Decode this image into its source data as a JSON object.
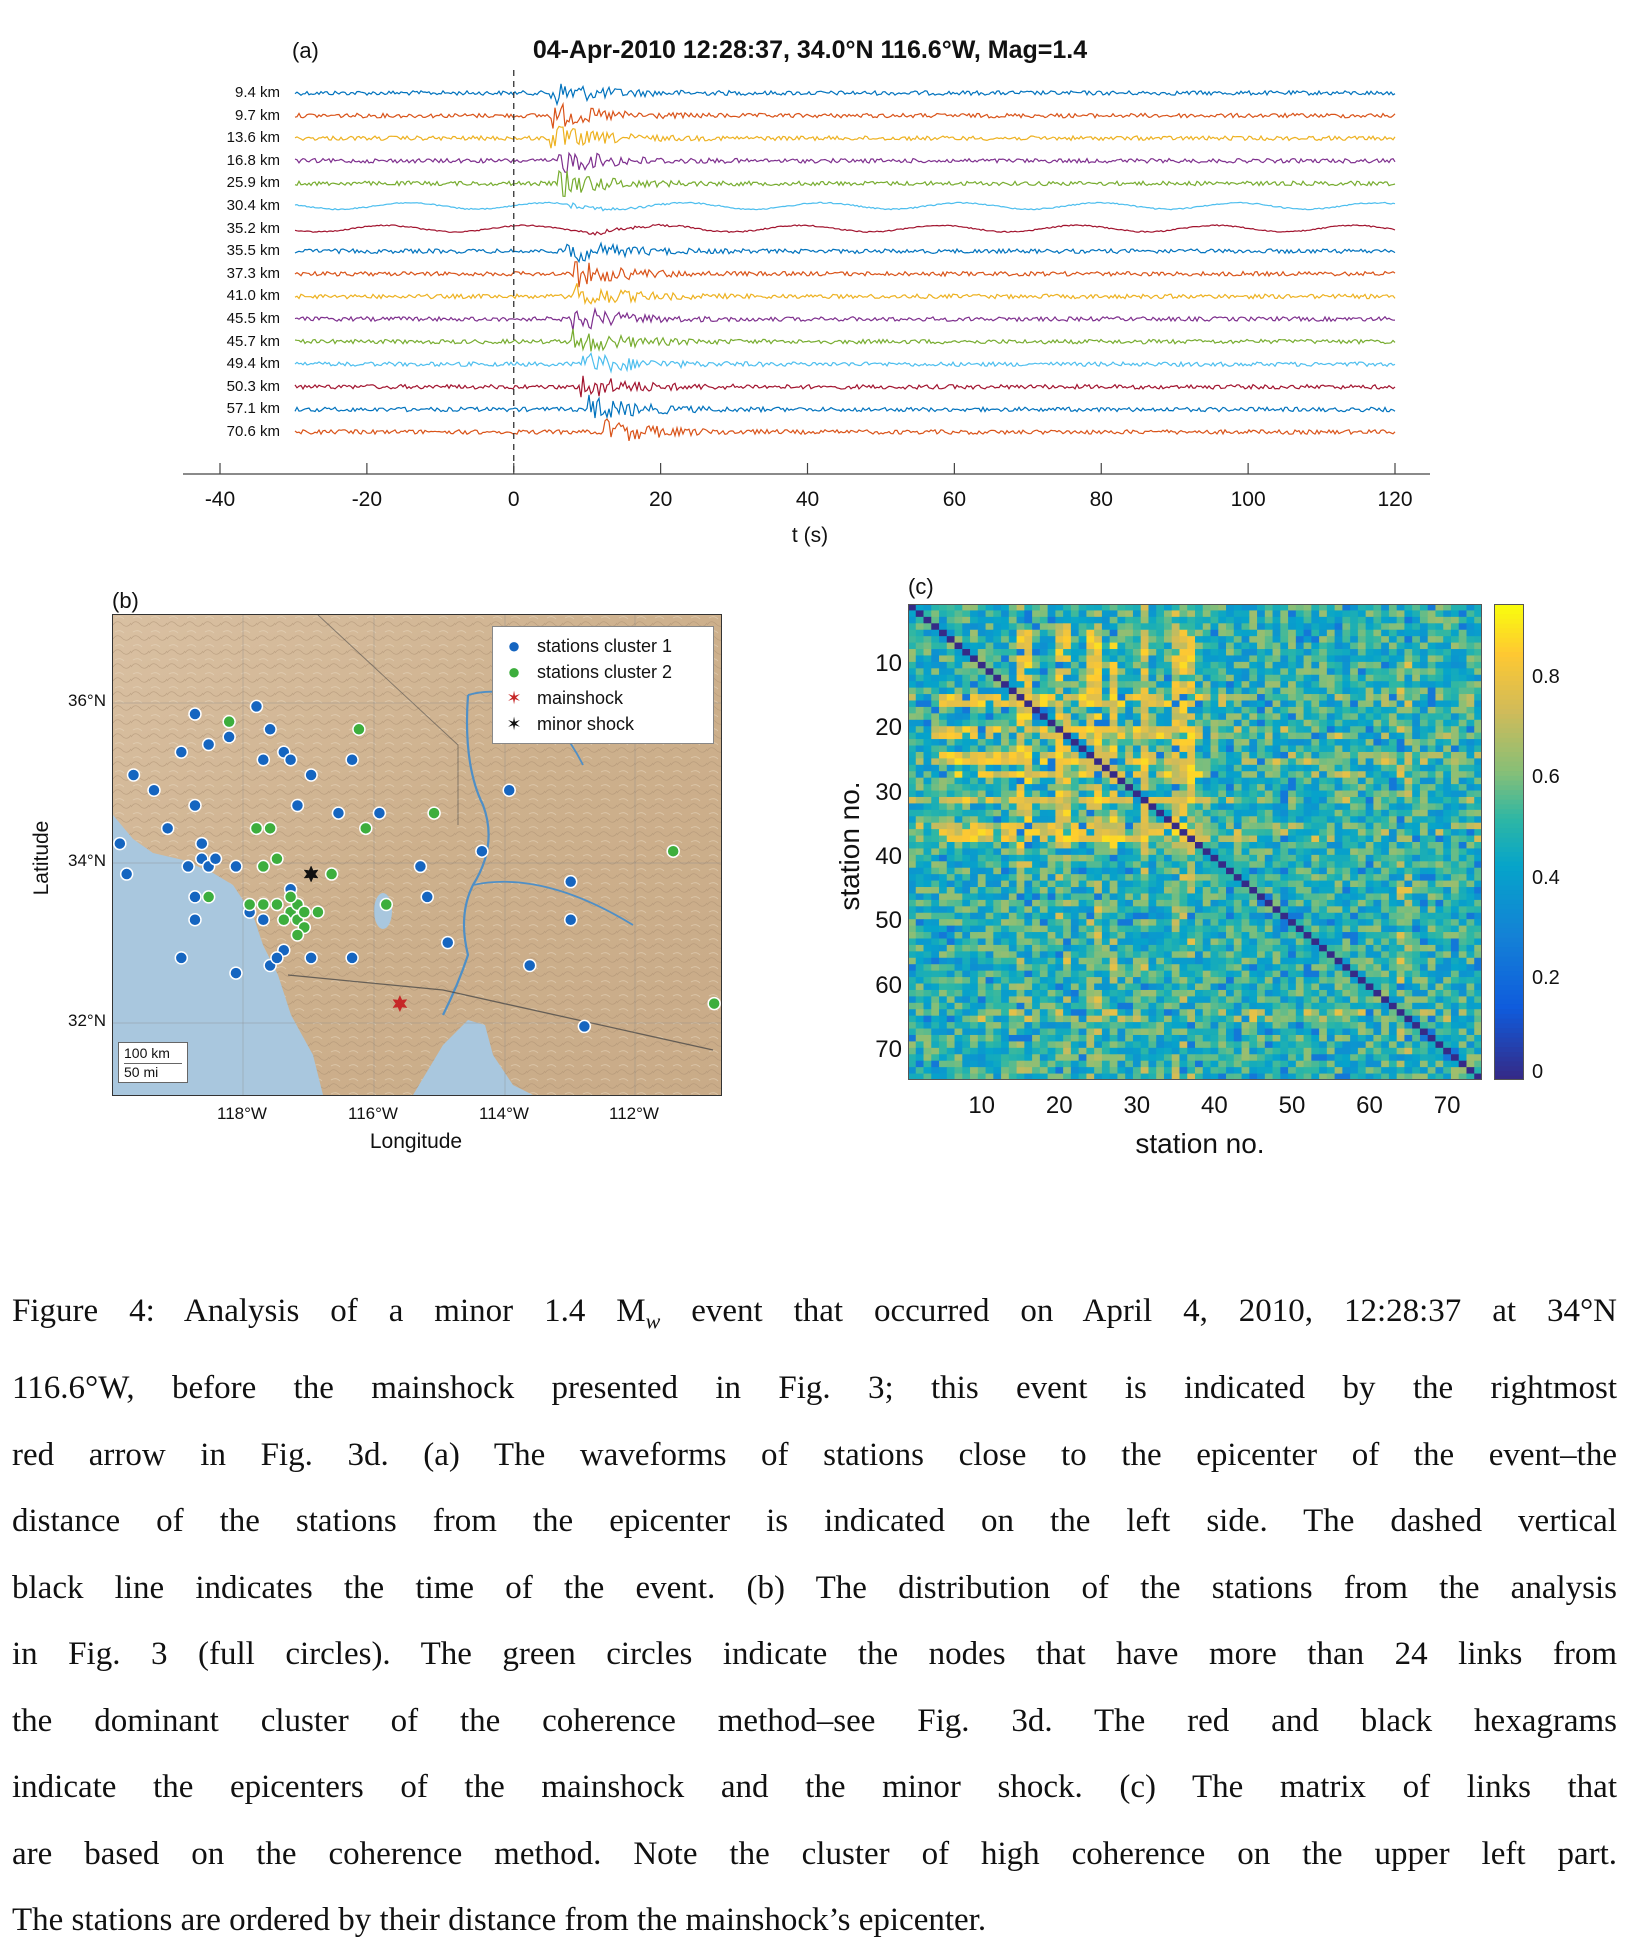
{
  "figure": {
    "panel_a": {
      "label": "(a)",
      "title": "04-Apr-2010 12:28:37, 34.0°N 116.6°W, Mag=1.4",
      "xlabel": "t (s)",
      "xticks": [
        "-40",
        "-20",
        "0",
        "20",
        "40",
        "60",
        "80",
        "100",
        "120"
      ],
      "chart_data": {
        "type": "line",
        "xlabel": "t (s)",
        "xlim": [
          -40,
          120
        ],
        "event_time_line": 0,
        "trace_colors": [
          "#0072BD",
          "#D95319",
          "#EDB120",
          "#7E2F8E",
          "#77AC30",
          "#4DBEEE",
          "#A2142F"
        ],
        "traces": [
          {
            "label": "9.4 km",
            "arrival": 5
          },
          {
            "label": "9.7 km",
            "arrival": 5
          },
          {
            "label": "13.6 km",
            "arrival": 5
          },
          {
            "label": "16.8 km",
            "arrival": 6
          },
          {
            "label": "25.9 km",
            "arrival": 6
          },
          {
            "label": "30.4 km",
            "arrival": 7
          },
          {
            "label": "35.2 km",
            "arrival": 10
          },
          {
            "label": "35.5 km",
            "arrival": 7
          },
          {
            "label": "37.3 km",
            "arrival": 8
          },
          {
            "label": "41.0 km",
            "arrival": 8
          },
          {
            "label": "45.5 km",
            "arrival": 8
          },
          {
            "label": "45.7 km",
            "arrival": 8
          },
          {
            "label": "49.4 km",
            "arrival": 9
          },
          {
            "label": "50.3 km",
            "arrival": 9
          },
          {
            "label": "57.1 km",
            "arrival": 10
          },
          {
            "label": "70.6 km",
            "arrival": 12
          }
        ]
      }
    },
    "panel_b": {
      "label": "(b)",
      "xlabel": "Longitude",
      "ylabel": "Latitude",
      "xticks": [
        "118°W",
        "116°W",
        "114°W",
        "112°W"
      ],
      "yticks": [
        "36°N",
        "34°N",
        "32°N"
      ],
      "scale_km": "100 km",
      "scale_mi": "50 mi",
      "legend": [
        {
          "text": "stations cluster 1",
          "color": "#1565C0",
          "icon": "circle-icon"
        },
        {
          "text": "stations cluster 2",
          "color": "#3DAE3D",
          "icon": "circle-icon"
        },
        {
          "text": "mainshock",
          "color": "#C62828",
          "icon": "hexagram-icon"
        },
        {
          "text": "minor shock",
          "color": "#111111",
          "icon": "hexagram-icon"
        }
      ],
      "map_data": {
        "lon_range": [
          -119.5,
          -110.6
        ],
        "lat_range": [
          31.1,
          37.4
        ],
        "mainshock": {
          "lon": -115.3,
          "lat": 32.3
        },
        "minor_shock": {
          "lon": -116.6,
          "lat": 34.0
        },
        "cluster1": [
          [
            -118.3,
            36.1
          ],
          [
            -118.5,
            35.6
          ],
          [
            -119.2,
            35.3
          ],
          [
            -118.9,
            35.1
          ],
          [
            -118.1,
            35.7
          ],
          [
            -117.8,
            35.8
          ],
          [
            -117.4,
            36.2
          ],
          [
            -117.2,
            35.9
          ],
          [
            -117.3,
            35.5
          ],
          [
            -117.0,
            35.6
          ],
          [
            -116.9,
            35.5
          ],
          [
            -116.6,
            35.3
          ],
          [
            -116.0,
            35.5
          ],
          [
            -116.8,
            34.9
          ],
          [
            -116.2,
            34.8
          ],
          [
            -115.6,
            34.8
          ],
          [
            -118.3,
            34.9
          ],
          [
            -118.7,
            34.6
          ],
          [
            -119.4,
            34.4
          ],
          [
            -119.3,
            34.0
          ],
          [
            -118.2,
            34.4
          ],
          [
            -118.2,
            34.2
          ],
          [
            -118.4,
            34.1
          ],
          [
            -118.1,
            34.1
          ],
          [
            -118.0,
            34.2
          ],
          [
            -117.7,
            34.1
          ],
          [
            -118.3,
            33.7
          ],
          [
            -118.3,
            33.4
          ],
          [
            -118.5,
            32.9
          ],
          [
            -117.5,
            33.5
          ],
          [
            -117.3,
            33.4
          ],
          [
            -116.9,
            33.8
          ],
          [
            -116.8,
            33.6
          ],
          [
            -116.7,
            33.5
          ],
          [
            -117.0,
            33.0
          ],
          [
            -117.2,
            32.8
          ],
          [
            -117.1,
            32.9
          ],
          [
            -116.6,
            32.9
          ],
          [
            -116.0,
            32.9
          ],
          [
            -115.0,
            34.1
          ],
          [
            -114.9,
            33.7
          ],
          [
            -114.6,
            33.1
          ],
          [
            -114.1,
            34.3
          ],
          [
            -113.7,
            35.1
          ],
          [
            -113.4,
            32.8
          ],
          [
            -112.8,
            33.9
          ],
          [
            -112.8,
            33.4
          ],
          [
            -112.6,
            32.0
          ],
          [
            -117.7,
            32.7
          ]
        ],
        "cluster2": [
          [
            -117.8,
            36.0
          ],
          [
            -115.9,
            35.9
          ],
          [
            -117.2,
            34.6
          ],
          [
            -117.4,
            34.6
          ],
          [
            -117.1,
            34.2
          ],
          [
            -117.3,
            34.1
          ],
          [
            -117.5,
            33.6
          ],
          [
            -117.3,
            33.6
          ],
          [
            -117.1,
            33.6
          ],
          [
            -116.9,
            33.5
          ],
          [
            -116.8,
            33.4
          ],
          [
            -116.8,
            33.6
          ],
          [
            -116.9,
            33.7
          ],
          [
            -116.7,
            33.5
          ],
          [
            -116.5,
            33.5
          ],
          [
            -117.0,
            33.4
          ],
          [
            -116.7,
            33.3
          ],
          [
            -116.8,
            33.2
          ],
          [
            -115.8,
            34.6
          ],
          [
            -116.3,
            34.0
          ],
          [
            -115.5,
            33.6
          ],
          [
            -114.8,
            34.8
          ],
          [
            -118.1,
            33.7
          ],
          [
            -111.3,
            34.3
          ],
          [
            -110.7,
            32.3
          ]
        ]
      }
    },
    "panel_c": {
      "label": "(c)",
      "xlabel": "station no.",
      "ylabel": "station no.",
      "xticks": [
        "10",
        "20",
        "30",
        "40",
        "50",
        "60",
        "70"
      ],
      "yticks": [
        "10",
        "20",
        "30",
        "40",
        "50",
        "60",
        "70"
      ],
      "colorbar_ticks": [
        "0",
        "0.2",
        "0.4",
        "0.6",
        "0.8"
      ],
      "chart_data": {
        "type": "heatmap",
        "n_stations": 74,
        "clim": [
          0,
          0.95
        ],
        "colormap": "parula",
        "diagonal_value": 0,
        "background_value": 0.5,
        "high_coherence_block": {
          "stations_from": 5,
          "stations_to": 38,
          "value": 0.8
        },
        "xlabel": "station no.",
        "ylabel": "station no."
      }
    }
  },
  "caption": {
    "lines": [
      "Figure 4: Analysis of a minor 1.4 M",
      "w",
      " event that occurred on April 4, 2010, 12:28:37 at 34°N",
      "116.6°W, before the mainshock presented in Fig. 3; this event is indicated by the rightmost",
      "red arrow in Fig. 3d. (a) The waveforms of stations close to the epicenter of the event–the",
      "distance of the stations from the epicenter is indicated on the left side. The dashed vertical",
      "black line indicates the time of the event. (b) The distribution of the stations from the analysis",
      "in Fig. 3 (full circles). The green circles indicate the nodes that have more than 24 links from",
      "the dominant cluster of the coherence method–see Fig. 3d. The red and black hexagrams",
      "indicate the epicenters of the mainshock and the minor shock. (c) The matrix of links that",
      "are based on the coherence method. Note the cluster of high coherence on the upper left part.",
      "The stations are ordered by their distance from the mainshock’s epicenter."
    ]
  }
}
